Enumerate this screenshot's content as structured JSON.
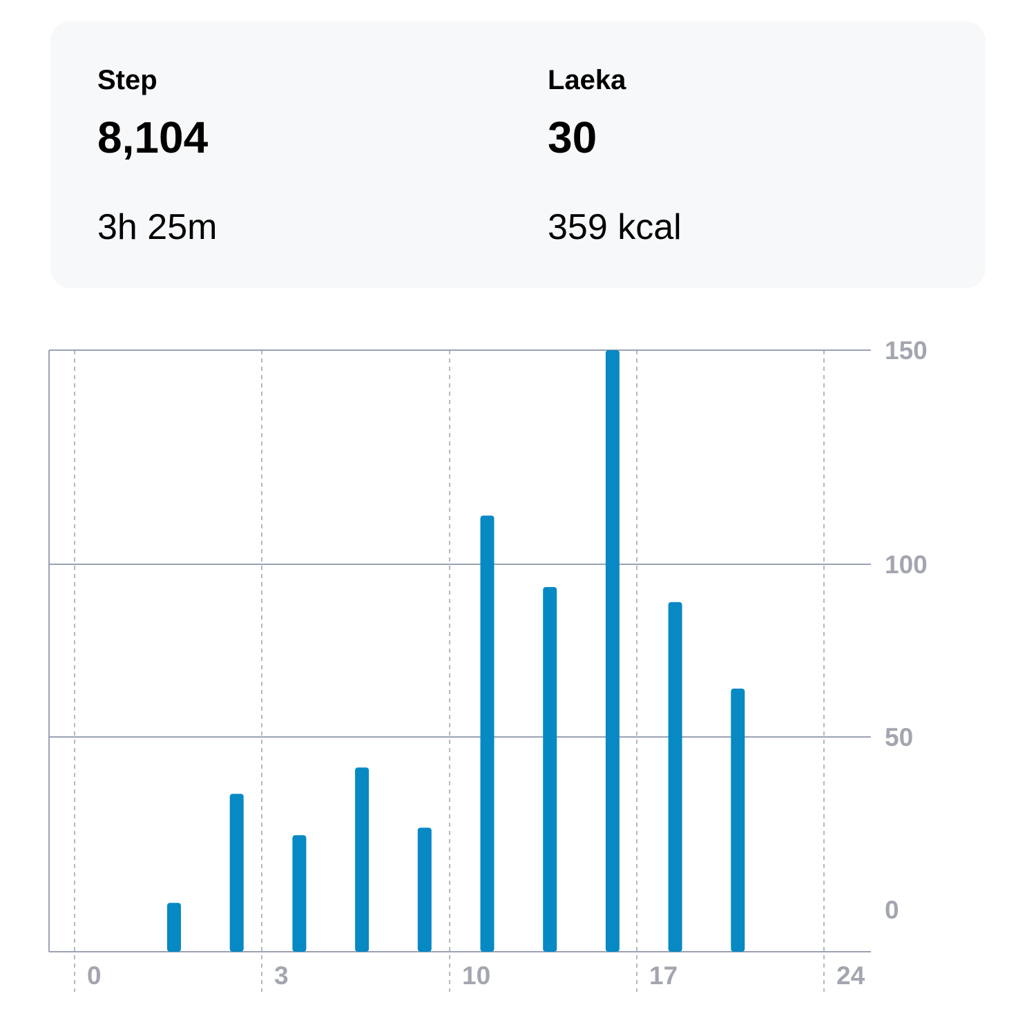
{
  "summary": {
    "steps": {
      "label": "Step",
      "value": "8,104",
      "sub": "3h 25m"
    },
    "laeka": {
      "label": "Laeka",
      "value": "30",
      "sub": "359 kcal"
    }
  },
  "colors": {
    "bar": "#0789c4",
    "grid": "#9ba1b3",
    "card_bg": "#f7f8fa",
    "tick_text": "#a3a6af"
  },
  "chart_data": {
    "type": "bar",
    "x": [
      1,
      2,
      3,
      4,
      5,
      6,
      7,
      8,
      9,
      10
    ],
    "values": [
      13,
      42,
      31,
      49,
      33,
      116,
      97,
      160,
      93,
      70
    ],
    "x_ticks": [
      "0",
      "3",
      "10",
      "17",
      "24"
    ],
    "y_ticks": [
      0,
      50,
      100,
      150
    ],
    "ylim": [
      0,
      160
    ],
    "y_axis_position": "right",
    "grid": true,
    "legend": "none"
  }
}
